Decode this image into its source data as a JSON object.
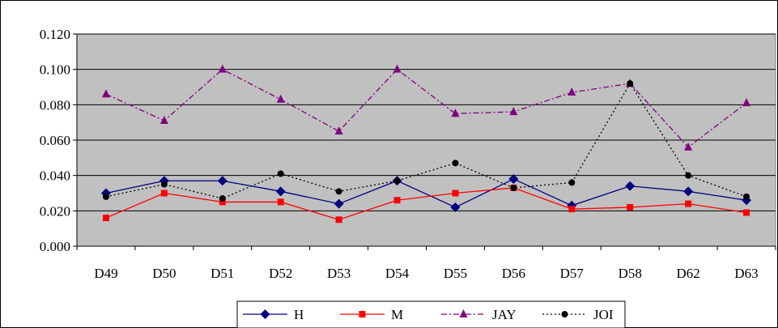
{
  "chart_data": {
    "type": "line",
    "title": "",
    "xlabel": "",
    "ylabel": "",
    "categories": [
      "D49",
      "D50",
      "D51",
      "D52",
      "D53",
      "D54",
      "D55",
      "D56",
      "D57",
      "D58",
      "D62",
      "D63"
    ],
    "ylim": [
      0,
      0.12
    ],
    "yticks": [
      "0.000",
      "0.020",
      "0.040",
      "0.060",
      "0.080",
      "0.100",
      "0.120"
    ],
    "grid": true,
    "plot_background": "#c0c0c0",
    "legend_position": "bottom",
    "series": [
      {
        "name": "H",
        "color": "#000080",
        "line_style": "solid",
        "marker": "diamond",
        "values": [
          0.03,
          0.037,
          0.037,
          0.031,
          0.024,
          0.037,
          0.022,
          0.038,
          0.023,
          0.034,
          0.031,
          0.026
        ]
      },
      {
        "name": "M",
        "color": "#ff0000",
        "line_style": "solid",
        "marker": "square",
        "values": [
          0.016,
          0.03,
          0.025,
          0.025,
          0.015,
          0.026,
          0.03,
          0.033,
          0.021,
          0.022,
          0.024,
          0.019
        ]
      },
      {
        "name": "JAY",
        "color": "#800080",
        "line_style": "dash-dot",
        "marker": "triangle",
        "values": [
          0.086,
          0.071,
          0.1,
          0.083,
          0.065,
          0.1,
          0.075,
          0.076,
          0.087,
          0.092,
          0.056,
          0.081
        ]
      },
      {
        "name": "JOI",
        "color": "#000000",
        "line_style": "dotted",
        "marker": "circle",
        "values": [
          0.028,
          0.035,
          0.027,
          0.041,
          0.031,
          0.037,
          0.047,
          0.033,
          0.036,
          0.092,
          0.04,
          0.028
        ]
      }
    ]
  }
}
